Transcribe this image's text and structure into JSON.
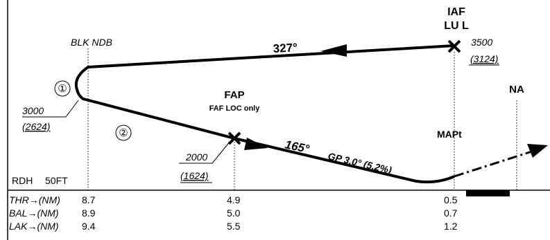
{
  "fixes": {
    "iaf": {
      "label": "IAF",
      "name": "LU L",
      "altitude": "3500",
      "height": "(3124)"
    },
    "ndb": {
      "label": "BLK NDB"
    },
    "fap": {
      "label": "FAP",
      "note": "FAF LOC only",
      "altitude": "2000",
      "height": "(1624)"
    },
    "mapt": {
      "label": "MAPt"
    },
    "na": {
      "label": "NA"
    }
  },
  "tracks": {
    "outbound": "327°",
    "inbound": "165°",
    "glidepath": "GP 3.0° (5.2%)"
  },
  "loop": {
    "marker1": "①",
    "altitude": "3000",
    "height": "(2624)",
    "marker2": "②"
  },
  "rdh": {
    "label": "RDH",
    "value": "50FT"
  },
  "table": {
    "rows": [
      [
        "THR→(NM)",
        "8.7",
        "4.9",
        "0.5"
      ],
      [
        "BAL→(NM)",
        "8.9",
        "5.0",
        "0.7"
      ],
      [
        "LAK→(NM)",
        "9.4",
        "5.5",
        "1.2"
      ]
    ]
  }
}
